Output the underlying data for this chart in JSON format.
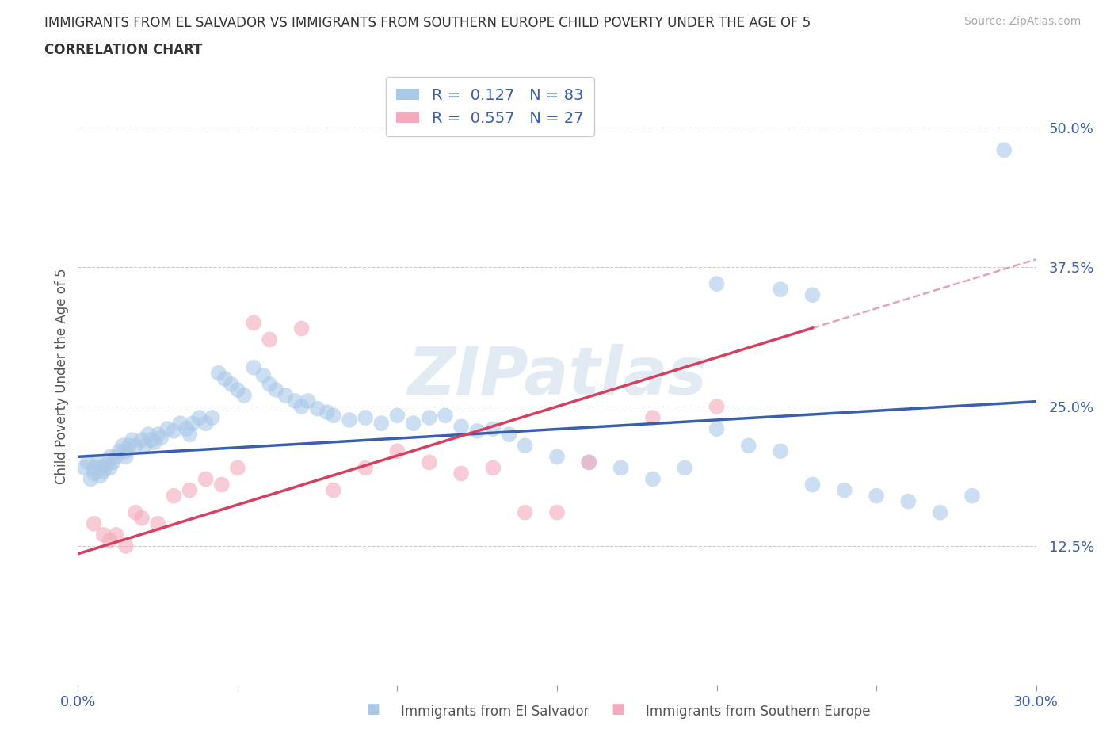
{
  "title_line1": "IMMIGRANTS FROM EL SALVADOR VS IMMIGRANTS FROM SOUTHERN EUROPE CHILD POVERTY UNDER THE AGE OF 5",
  "title_line2": "CORRELATION CHART",
  "source": "Source: ZipAtlas.com",
  "ylabel": "Child Poverty Under the Age of 5",
  "xmin": 0.0,
  "xmax": 0.3,
  "ymin": 0.0,
  "ymax": 0.555,
  "series1_color": "#aac8e8",
  "series2_color": "#f4aabc",
  "trend1_color": "#3a5fad",
  "trend2_color": "#d44060",
  "ref_line_color": "#d48090",
  "R1": 0.127,
  "N1": 83,
  "R2": 0.557,
  "N2": 27,
  "legend_label1": "Immigrants from El Salvador",
  "legend_label2": "Immigrants from Southern Europe",
  "watermark": "ZIPatlas",
  "background_color": "#ffffff",
  "grid_color": "#cccccc",
  "title_color": "#333333",
  "axis_tick_color": "#3a5fad",
  "ylabel_color": "#555555",
  "scatter1_x": [
    0.002,
    0.003,
    0.004,
    0.005,
    0.005,
    0.006,
    0.007,
    0.007,
    0.008,
    0.009,
    0.01,
    0.01,
    0.011,
    0.012,
    0.013,
    0.014,
    0.015,
    0.015,
    0.016,
    0.017,
    0.018,
    0.02,
    0.021,
    0.022,
    0.023,
    0.024,
    0.025,
    0.026,
    0.028,
    0.03,
    0.032,
    0.034,
    0.035,
    0.036,
    0.038,
    0.04,
    0.042,
    0.044,
    0.046,
    0.048,
    0.05,
    0.052,
    0.055,
    0.058,
    0.06,
    0.062,
    0.065,
    0.068,
    0.07,
    0.072,
    0.075,
    0.078,
    0.08,
    0.085,
    0.09,
    0.095,
    0.1,
    0.105,
    0.11,
    0.115,
    0.12,
    0.125,
    0.13,
    0.135,
    0.14,
    0.15,
    0.16,
    0.17,
    0.18,
    0.19,
    0.2,
    0.21,
    0.22,
    0.23,
    0.24,
    0.25,
    0.26,
    0.27,
    0.28,
    0.29,
    0.2,
    0.22,
    0.23
  ],
  "scatter1_y": [
    0.195,
    0.2,
    0.185,
    0.19,
    0.195,
    0.2,
    0.188,
    0.195,
    0.192,
    0.198,
    0.205,
    0.195,
    0.2,
    0.205,
    0.21,
    0.215,
    0.21,
    0.205,
    0.215,
    0.22,
    0.215,
    0.22,
    0.215,
    0.225,
    0.22,
    0.218,
    0.225,
    0.222,
    0.23,
    0.228,
    0.235,
    0.23,
    0.225,
    0.235,
    0.24,
    0.235,
    0.24,
    0.28,
    0.275,
    0.27,
    0.265,
    0.26,
    0.285,
    0.278,
    0.27,
    0.265,
    0.26,
    0.255,
    0.25,
    0.255,
    0.248,
    0.245,
    0.242,
    0.238,
    0.24,
    0.235,
    0.242,
    0.235,
    0.24,
    0.242,
    0.232,
    0.228,
    0.23,
    0.225,
    0.215,
    0.205,
    0.2,
    0.195,
    0.185,
    0.195,
    0.23,
    0.215,
    0.21,
    0.18,
    0.175,
    0.17,
    0.165,
    0.155,
    0.17,
    0.48,
    0.36,
    0.355,
    0.35
  ],
  "scatter2_x": [
    0.005,
    0.008,
    0.01,
    0.012,
    0.015,
    0.018,
    0.02,
    0.025,
    0.03,
    0.035,
    0.04,
    0.045,
    0.05,
    0.055,
    0.06,
    0.07,
    0.08,
    0.09,
    0.1,
    0.11,
    0.12,
    0.13,
    0.14,
    0.15,
    0.16,
    0.18,
    0.2
  ],
  "scatter2_y": [
    0.145,
    0.135,
    0.13,
    0.135,
    0.125,
    0.155,
    0.15,
    0.145,
    0.17,
    0.175,
    0.185,
    0.18,
    0.195,
    0.325,
    0.31,
    0.32,
    0.175,
    0.195,
    0.21,
    0.2,
    0.19,
    0.195,
    0.155,
    0.155,
    0.2,
    0.24,
    0.25
  ],
  "trend1_intercept": 0.205,
  "trend1_slope": 0.165,
  "trend2_intercept": 0.118,
  "trend2_slope": 0.88
}
